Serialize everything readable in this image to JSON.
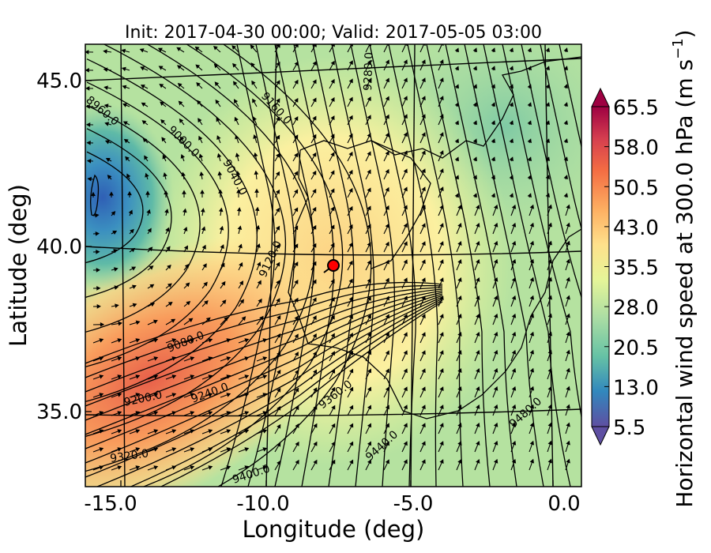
{
  "title": "Init: 2017-04-30 00:00; Valid: 2017-05-05 03:00",
  "xlabel": "Longitude (deg)",
  "ylabel": "Latitude (deg)",
  "colorbar": {
    "label_main": "Horizontal wind speed at 300.0 hPa (m s",
    "label_sup": "−1",
    "label_close": ")",
    "ticks": [
      "5.5",
      "13.0",
      "20.5",
      "28.0",
      "35.5",
      "43.0",
      "50.5",
      "58.0",
      "65.5"
    ],
    "tick_values": [
      5.5,
      13.0,
      20.5,
      28.0,
      35.5,
      43.0,
      50.5,
      58.0,
      65.5
    ],
    "range": [
      5.5,
      65.5
    ],
    "colors_low_to_high": [
      "#5e4fa2",
      "#3288bd",
      "#66c2a5",
      "#abdda4",
      "#e6f598",
      "#fee08b",
      "#fdae61",
      "#f46d43",
      "#d53e4f",
      "#9e0142"
    ]
  },
  "x_ticks": [
    "-15.0",
    "-10.0",
    "-5.0",
    "0.0"
  ],
  "y_ticks": [
    "45.0",
    "40.0",
    "35.0"
  ],
  "contour_labels": [
    "8960.0",
    "9000.0",
    "9040.0",
    "9160.0",
    "9280.0",
    "9120.0",
    "9080.0",
    "9200.0",
    "9240.0",
    "9320.0",
    "9360.0",
    "9400.0",
    "9440.0",
    "9480.0"
  ],
  "marker_color": "#ff0000",
  "chart_data": {
    "type": "heatmap",
    "title": "Init: 2017-04-30 00:00; Valid: 2017-05-05 03:00",
    "xlabel": "Longitude (deg)",
    "ylabel": "Latitude (deg)",
    "xlim": [
      -15.8,
      0.3
    ],
    "ylim": [
      32.5,
      46.1
    ],
    "field": "Horizontal wind speed at 300.0 hPa",
    "units": "m s-1",
    "value_range": [
      5.5,
      65.5
    ],
    "overlays": [
      "geopotential height contours (m)",
      "wind vectors",
      "coastlines and borders"
    ],
    "contour_levels": [
      8960,
      9000,
      9040,
      9080,
      9120,
      9160,
      9200,
      9240,
      9280,
      9320,
      9360,
      9400,
      9440,
      9480
    ],
    "jet_core_region": "southwest, near 35N 15W",
    "low_region": "west, near 41.5N 15.5W",
    "marker": {
      "lon": -7.6,
      "lat": 39.4
    }
  }
}
